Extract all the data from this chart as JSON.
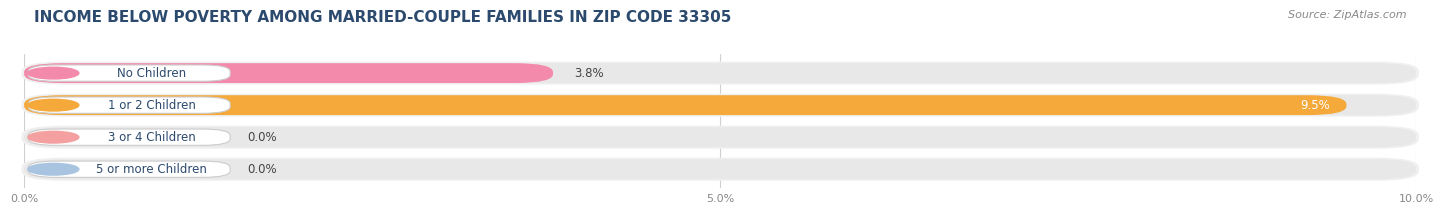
{
  "title": "INCOME BELOW POVERTY AMONG MARRIED-COUPLE FAMILIES IN ZIP CODE 33305",
  "source": "Source: ZipAtlas.com",
  "categories": [
    "No Children",
    "1 or 2 Children",
    "3 or 4 Children",
    "5 or more Children"
  ],
  "values": [
    3.8,
    9.5,
    0.0,
    0.0
  ],
  "bar_colors": [
    "#f48aab",
    "#f5a93a",
    "#f4a0a0",
    "#a8c4e0"
  ],
  "bar_bg_color": "#e8e8e8",
  "row_bg_color": "#f0f0f0",
  "label_bg_color": "#ffffff",
  "xlim": [
    0,
    10.0
  ],
  "xticks": [
    0.0,
    5.0,
    10.0
  ],
  "xtick_labels": [
    "0.0%",
    "5.0%",
    "10.0%"
  ],
  "value_fontsize": 8.5,
  "label_fontsize": 8.5,
  "title_fontsize": 11,
  "source_fontsize": 8,
  "fig_bg_color": "#ffffff",
  "title_color": "#2c4a6e",
  "label_text_color": "#2c4a6e",
  "value_text_color": "#444444",
  "grid_color": "#d0d0d0"
}
